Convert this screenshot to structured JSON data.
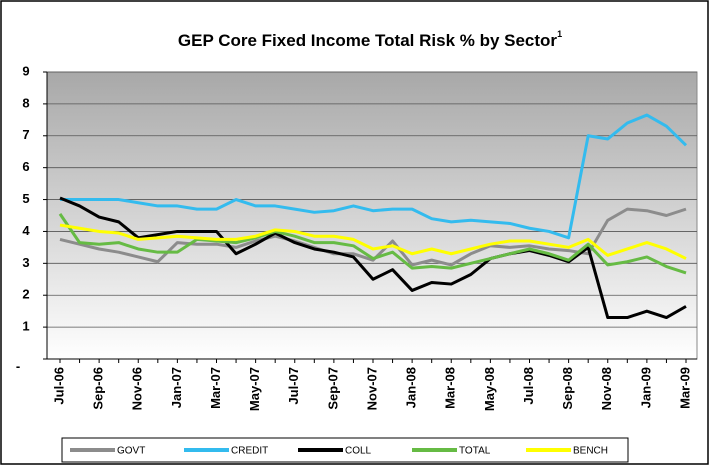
{
  "chart_data": {
    "type": "line",
    "title": "GEP Core Fixed Income Total Risk % by Sector",
    "title_superscript": "1",
    "categories": [
      "Jul-06",
      null,
      "Sep-06",
      null,
      "Nov-06",
      null,
      "Jan-07",
      null,
      "Mar-07",
      null,
      "May-07",
      null,
      "Jul-07",
      null,
      "Sep-07",
      null,
      "Nov-07",
      null,
      "Jan-08",
      null,
      "Mar-08",
      null,
      "May-08",
      null,
      "Jul-08",
      null,
      "Sep-08",
      null,
      "Nov-08",
      null,
      "Jan-09",
      null,
      "Mar-09"
    ],
    "ylim": [
      0,
      9
    ],
    "yticks": [
      {
        "value": 0,
        "label": "-"
      },
      1,
      2,
      3,
      4,
      5,
      6,
      7,
      8,
      9
    ],
    "grid": true,
    "legend": "bottom",
    "series": [
      {
        "name": "GOVT",
        "color": "#8c8c8c",
        "values": [
          3.75,
          3.6,
          3.45,
          3.35,
          3.2,
          3.05,
          3.65,
          3.6,
          3.6,
          3.5,
          3.7,
          3.85,
          3.7,
          3.5,
          3.3,
          3.3,
          3.1,
          3.7,
          2.95,
          3.1,
          2.95,
          3.3,
          3.55,
          3.5,
          3.55,
          3.45,
          3.4,
          3.3,
          4.35,
          4.7,
          4.65,
          4.5,
          4.7
        ]
      },
      {
        "name": "CREDIT",
        "color": "#33bbee",
        "values": [
          5.0,
          5.0,
          5.0,
          5.0,
          4.9,
          4.8,
          4.8,
          4.7,
          4.7,
          5.0,
          4.8,
          4.8,
          4.7,
          4.6,
          4.65,
          4.8,
          4.65,
          4.7,
          4.7,
          4.4,
          4.3,
          4.35,
          4.3,
          4.25,
          4.1,
          4.0,
          3.8,
          7.0,
          6.9,
          7.4,
          7.65,
          7.3,
          6.7
        ]
      },
      {
        "name": "COLL",
        "color": "#000000",
        "values": [
          5.05,
          4.8,
          4.45,
          4.3,
          3.8,
          3.9,
          4.0,
          4.0,
          4.0,
          3.3,
          3.6,
          3.95,
          3.65,
          3.45,
          3.35,
          3.2,
          2.5,
          2.8,
          2.15,
          2.4,
          2.35,
          2.65,
          3.15,
          3.3,
          3.4,
          3.25,
          3.05,
          3.5,
          1.3,
          1.3,
          1.5,
          1.3,
          1.65
        ]
      },
      {
        "name": "TOTAL",
        "color": "#66bb44",
        "values": [
          4.55,
          3.65,
          3.6,
          3.65,
          3.45,
          3.35,
          3.35,
          3.75,
          3.7,
          3.65,
          3.8,
          4.0,
          3.85,
          3.65,
          3.65,
          3.55,
          3.15,
          3.35,
          2.85,
          2.9,
          2.85,
          3.0,
          3.15,
          3.3,
          3.45,
          3.3,
          3.1,
          3.6,
          2.95,
          3.05,
          3.2,
          2.9,
          2.7
        ]
      },
      {
        "name": "BENCH",
        "color": "#ffff00",
        "values": [
          4.2,
          4.1,
          4.0,
          3.95,
          3.75,
          3.8,
          3.85,
          3.8,
          3.75,
          3.75,
          3.85,
          4.05,
          4.0,
          3.85,
          3.85,
          3.75,
          3.45,
          3.55,
          3.3,
          3.45,
          3.3,
          3.45,
          3.6,
          3.7,
          3.7,
          3.6,
          3.5,
          3.75,
          3.25,
          3.45,
          3.65,
          3.45,
          3.15
        ]
      }
    ]
  }
}
